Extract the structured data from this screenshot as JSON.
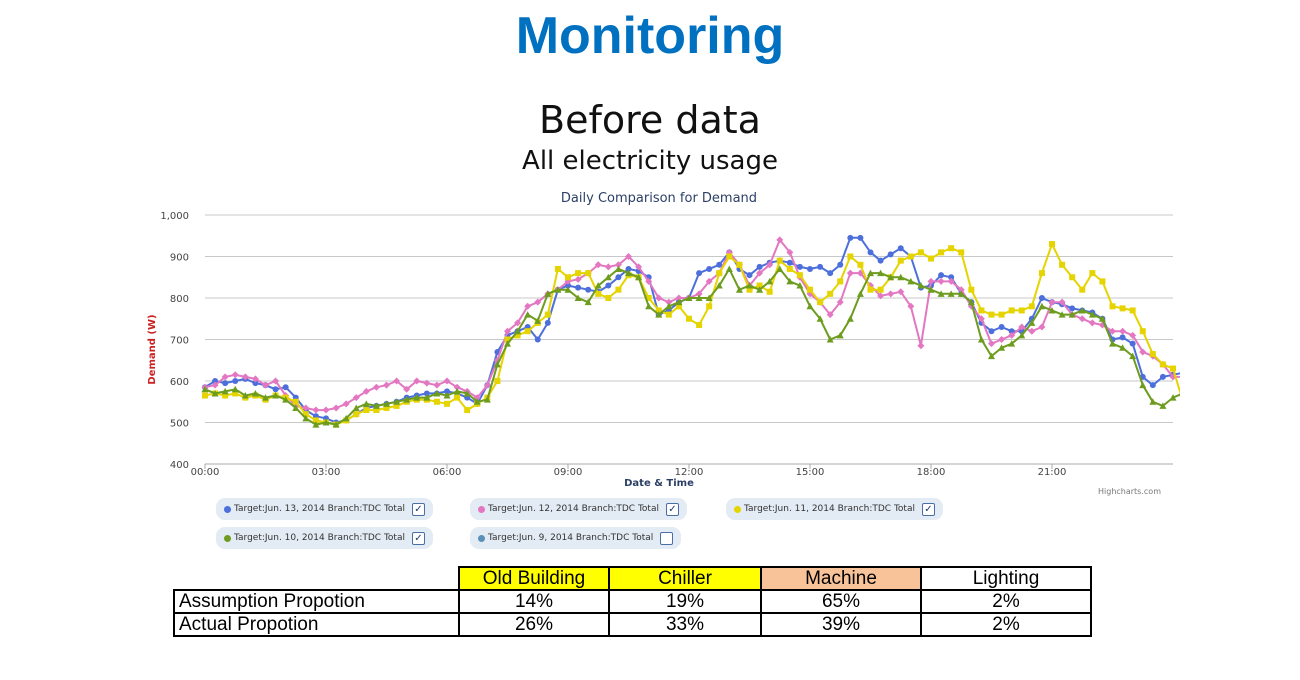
{
  "slide": {
    "title": "Monitoring",
    "heading": "Before data",
    "subheading": "All electricity usage",
    "credit": "Highcharts.com"
  },
  "chart_data": {
    "type": "line",
    "title": "Daily Comparison for Demand",
    "xlabel": "Date & Time",
    "ylabel": "Demand (W)",
    "ylim": [
      400,
      1000
    ],
    "yticks": [
      "400",
      "500",
      "600",
      "700",
      "800",
      "900",
      "1,000"
    ],
    "xticks": [
      "00:00",
      "03:00",
      "06:00",
      "09:00",
      "12:00",
      "15:00",
      "18:00",
      "21:00"
    ],
    "xtick_hours": [
      0,
      3,
      6,
      9,
      12,
      15,
      18,
      21
    ],
    "x_unit": "hour of day",
    "x_step_hours": 0.25,
    "grid": "horizontal",
    "legend_position": "bottom",
    "series": [
      {
        "name": "Target:Jun. 13, 2014 Branch:TDC Total",
        "color": "#4c6fdb",
        "marker": "circle",
        "visible": true,
        "values": [
          585,
          600,
          595,
          600,
          605,
          595,
          590,
          580,
          585,
          560,
          530,
          515,
          510,
          500,
          505,
          520,
          535,
          540,
          545,
          550,
          560,
          565,
          570,
          570,
          575,
          570,
          560,
          545,
          590,
          670,
          710,
          720,
          730,
          700,
          740,
          820,
          830,
          825,
          820,
          815,
          830,
          850,
          870,
          865,
          850,
          760,
          770,
          790,
          800,
          860,
          870,
          880,
          910,
          870,
          855,
          875,
          885,
          890,
          885,
          875,
          870,
          875,
          860,
          880,
          945,
          945,
          910,
          890,
          905,
          920,
          900,
          825,
          830,
          855,
          850,
          810,
          790,
          740,
          720,
          730,
          720,
          720,
          750,
          800,
          790,
          785,
          775,
          770,
          765,
          750,
          700,
          705,
          690,
          610,
          590,
          610,
          615,
          620,
          620,
          615
        ]
      },
      {
        "name": "Target:Jun. 12, 2014 Branch:TDC Total",
        "color": "#e377c2",
        "marker": "diamond",
        "visible": true,
        "values": [
          585,
          590,
          610,
          615,
          610,
          605,
          590,
          600,
          565,
          540,
          535,
          530,
          530,
          535,
          545,
          560,
          575,
          585,
          590,
          600,
          580,
          600,
          595,
          590,
          600,
          585,
          575,
          560,
          590,
          650,
          720,
          740,
          780,
          790,
          810,
          820,
          840,
          845,
          860,
          880,
          875,
          880,
          900,
          875,
          840,
          800,
          790,
          800,
          800,
          810,
          840,
          860,
          910,
          880,
          830,
          860,
          880,
          940,
          910,
          850,
          810,
          790,
          760,
          790,
          860,
          860,
          830,
          805,
          810,
          815,
          780,
          685,
          840,
          840,
          840,
          820,
          780,
          750,
          690,
          700,
          710,
          730,
          720,
          730,
          790,
          790,
          760,
          750,
          740,
          735,
          720,
          720,
          710,
          670,
          660,
          640,
          610,
          610,
          620,
          590
        ]
      },
      {
        "name": "Target:Jun. 11, 2014 Branch:TDC Total",
        "color": "#e5d400",
        "marker": "square",
        "visible": true,
        "values": [
          565,
          570,
          565,
          570,
          560,
          565,
          555,
          565,
          560,
          550,
          520,
          505,
          500,
          495,
          505,
          520,
          530,
          530,
          535,
          540,
          550,
          555,
          555,
          550,
          545,
          560,
          530,
          545,
          560,
          600,
          700,
          710,
          720,
          740,
          760,
          870,
          850,
          860,
          860,
          810,
          800,
          820,
          855,
          850,
          800,
          770,
          760,
          780,
          750,
          735,
          780,
          860,
          900,
          880,
          820,
          830,
          815,
          890,
          870,
          855,
          820,
          790,
          810,
          840,
          900,
          880,
          820,
          820,
          850,
          890,
          900,
          910,
          895,
          910,
          920,
          910,
          820,
          770,
          760,
          760,
          770,
          770,
          780,
          860,
          930,
          880,
          850,
          820,
          860,
          840,
          780,
          775,
          770,
          720,
          665,
          640,
          630,
          550,
          575,
          585
        ]
      },
      {
        "name": "Target:Jun. 10, 2014 Branch:TDC Total",
        "color": "#6d9c1f",
        "marker": "triangle",
        "visible": true,
        "values": [
          580,
          570,
          575,
          580,
          565,
          570,
          560,
          565,
          555,
          535,
          510,
          495,
          500,
          495,
          510,
          535,
          545,
          540,
          545,
          550,
          555,
          560,
          560,
          570,
          565,
          575,
          570,
          550,
          555,
          640,
          690,
          720,
          760,
          745,
          810,
          820,
          820,
          800,
          790,
          830,
          850,
          870,
          860,
          850,
          780,
          760,
          780,
          790,
          800,
          800,
          800,
          830,
          870,
          820,
          830,
          820,
          840,
          870,
          840,
          830,
          780,
          750,
          700,
          710,
          750,
          810,
          860,
          860,
          850,
          850,
          840,
          830,
          820,
          810,
          810,
          810,
          790,
          700,
          660,
          680,
          690,
          710,
          740,
          780,
          770,
          760,
          760,
          770,
          760,
          750,
          690,
          680,
          660,
          590,
          550,
          540,
          560,
          570,
          575,
          555
        ]
      },
      {
        "name": "Target:Jun. 9, 2014 Branch:TDC Total",
        "color": "#5a8fb8",
        "marker": "circle",
        "visible": false,
        "values": []
      }
    ]
  },
  "table": {
    "headers": [
      "Old Building",
      "Chiller",
      "Machine",
      "Lighting"
    ],
    "header_colors": [
      "#ffff00",
      "#ffff00",
      "#f9c39a",
      "#ffffff"
    ],
    "rows": [
      {
        "label": "Assumption Propotion",
        "values": [
          "14%",
          "19%",
          "65%",
          "2%"
        ]
      },
      {
        "label": "Actual Propotion",
        "values": [
          "26%",
          "33%",
          "39%",
          "2%"
        ]
      }
    ]
  }
}
